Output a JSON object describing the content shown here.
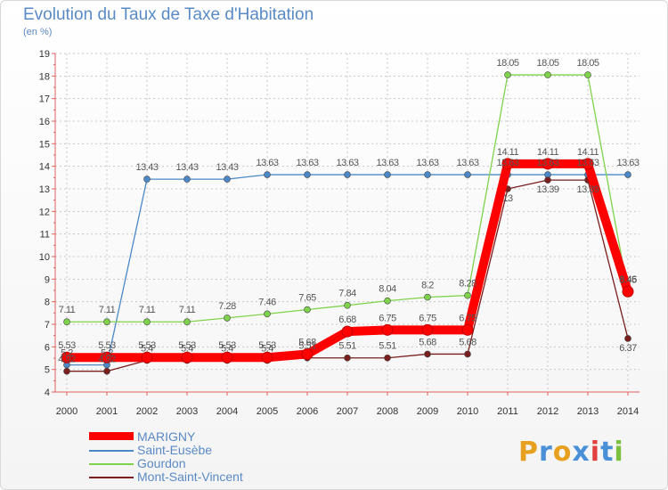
{
  "title": "Evolution du Taux de Taxe d'Habitation",
  "subtitle": "(en %)",
  "logo": {
    "letters": [
      "P",
      "r",
      "o",
      "x",
      "i",
      "t",
      "i"
    ],
    "colors": [
      "#e8a020",
      "#4a90d9",
      "#e8a020",
      "#4a90d9",
      "#e04040",
      "#4a90d9",
      "#7cc040"
    ]
  },
  "chart_data": {
    "type": "line",
    "title": "Evolution du Taux de Taxe d'Habitation",
    "ylabel": "(en %)",
    "x": [
      "2000",
      "2001",
      "2002",
      "2003",
      "2004",
      "2005",
      "2006",
      "2007",
      "2008",
      "2009",
      "2010",
      "2011",
      "2012",
      "2013",
      "2014"
    ],
    "y_ticks": [
      "4",
      "5",
      "6",
      "7",
      "8",
      "9",
      "10",
      "11",
      "12",
      "13",
      "14",
      "15",
      "16",
      "17",
      "18",
      "19"
    ],
    "ylim": [
      4,
      19
    ],
    "grid": true,
    "legend_position": "bottom-left",
    "series": [
      {
        "name": "MARIGNY",
        "color": "#ff0000",
        "bold": true,
        "values": [
          5.53,
          5.53,
          5.53,
          5.53,
          5.53,
          5.53,
          5.68,
          6.68,
          6.75,
          6.75,
          6.75,
          14.11,
          14.11,
          14.11,
          8.45
        ],
        "labels": [
          "5.53",
          "5.53",
          "5.53",
          "5.53",
          "5.53",
          "5.53",
          "5.68",
          "6.68",
          "6.75",
          "6.75",
          "6.75",
          "14.11",
          "14.11",
          "14.11",
          "8.45"
        ]
      },
      {
        "name": "Saint-Eusèbe",
        "color": "#4a88c7",
        "values": [
          5.2,
          5.2,
          13.43,
          13.43,
          13.43,
          13.63,
          13.63,
          13.63,
          13.63,
          13.63,
          13.63,
          13.63,
          13.63,
          13.63,
          13.63
        ],
        "labels": [
          "5.2",
          "5.2",
          "13.43",
          "13.43",
          "13.43",
          "13.63",
          "13.63",
          "13.63",
          "13.63",
          "13.63",
          "13.63",
          "13.63",
          "13.63",
          "13.63",
          "13.63"
        ]
      },
      {
        "name": "Gourdon",
        "color": "#7fd34a",
        "values": [
          7.11,
          7.11,
          7.11,
          7.11,
          7.28,
          7.46,
          7.65,
          7.84,
          8.04,
          8.2,
          8.28,
          18.05,
          18.05,
          18.05,
          8.46
        ],
        "labels": [
          "7.11",
          "7.11",
          "7.11",
          "7.11",
          "7.28",
          "7.46",
          "7.65",
          "7.84",
          "8.04",
          "8.2",
          "8.28",
          "18.05",
          "18.05",
          "18.05",
          "8.46"
        ]
      },
      {
        "name": "Mont-Saint-Vincent",
        "color": "#7a1e1e",
        "values": [
          4.92,
          4.92,
          5.4,
          5.4,
          5.4,
          5.4,
          5.51,
          5.51,
          5.51,
          5.68,
          5.68,
          13.0,
          13.39,
          13.39,
          6.37
        ],
        "labels": [
          "4.92",
          "4.92",
          "5.4",
          "5.4",
          "5.4",
          "5.4",
          "5.51",
          "5.51",
          "5.51",
          "5.68",
          "5.68",
          "13",
          "13.39",
          "13.39",
          "6.37"
        ]
      }
    ]
  }
}
